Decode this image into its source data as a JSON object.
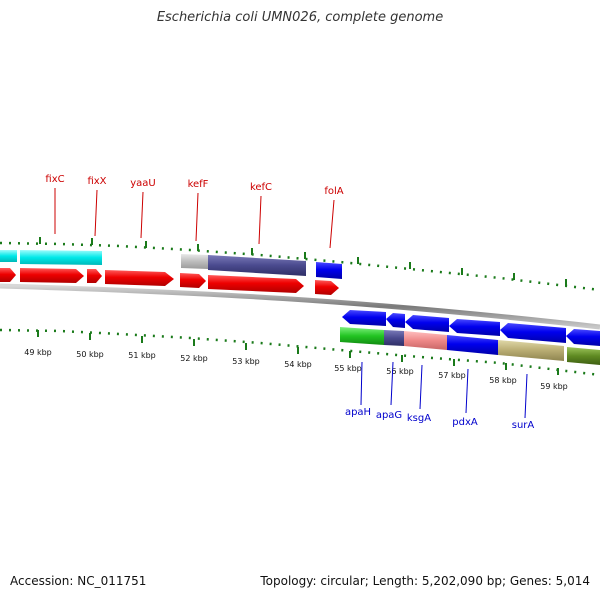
{
  "title": "Escherichia coli UMN026, complete genome",
  "footer": {
    "accession": "Accession: NC_011751",
    "summary": "Topology: circular; Length: 5,202,090 bp; Genes: 5,014"
  },
  "colors": {
    "forward_label": "#cc0000",
    "reverse_label": "#0000cc",
    "tick": "#1a7a1a",
    "backbone": "#808080"
  },
  "axis_labels": [
    "49 kbp",
    "50 kbp",
    "51 kbp",
    "52 kbp",
    "53 kbp",
    "54 kbp",
    "55 kbp",
    "56 kbp",
    "57 kbp",
    "58 kbp",
    "59 kbp"
  ],
  "forward_genes": [
    {
      "name": "fixC"
    },
    {
      "name": "fixX"
    },
    {
      "name": "yaaU"
    },
    {
      "name": "kefF"
    },
    {
      "name": "kefC"
    },
    {
      "name": "folA"
    }
  ],
  "reverse_genes": [
    {
      "name": "apaH"
    },
    {
      "name": "apaG"
    },
    {
      "name": "ksgA"
    },
    {
      "name": "pdxA"
    },
    {
      "name": "surA"
    }
  ]
}
